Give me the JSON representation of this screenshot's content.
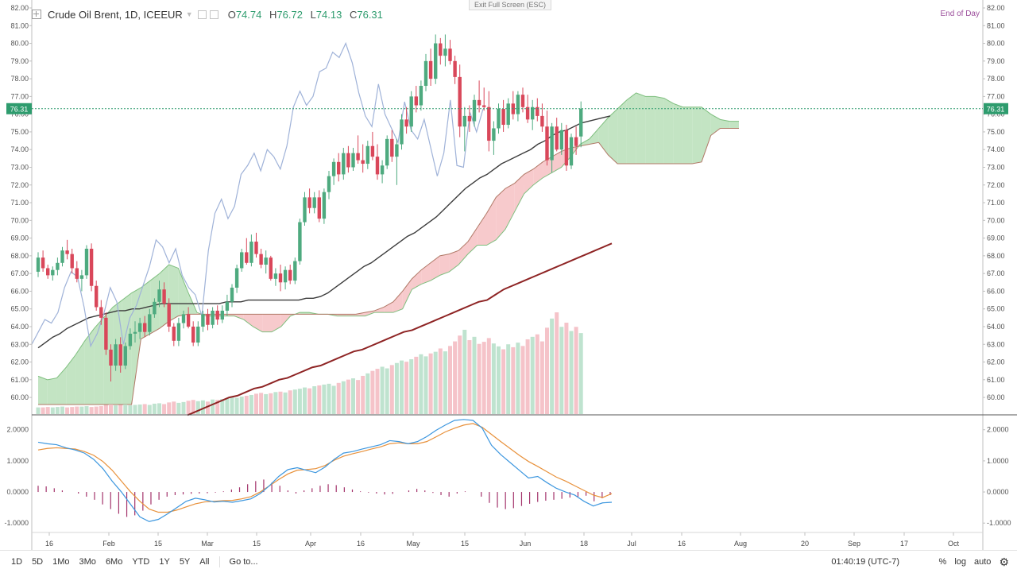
{
  "header": {
    "symbol": "Crude Oil Brent, 1D, ICEEUR",
    "open_label": "O",
    "open": "74.74",
    "high_label": "H",
    "high": "76.72",
    "low_label": "L",
    "low": "74.13",
    "close_label": "C",
    "close": "76.31",
    "exit_fullscreen": "Exit Full Screen (ESC)",
    "end_of_day": "End of Day"
  },
  "colors": {
    "up": "#4eaa7f",
    "down": "#d9475a",
    "cloud_bull": "#b9dfb9",
    "cloud_bear": "#f6c1c3",
    "chikou": "#9fb2d8",
    "ma_dark": "#3c3c3c",
    "ma_red": "#8e2424",
    "macd": "#3d97df",
    "signal": "#e8913b",
    "hist": "#a3336b",
    "price_line": "#2e9c6e"
  },
  "chart_data": {
    "type": "candlestick",
    "x_ticks": [
      "16",
      "Feb",
      "15",
      "Mar",
      "15",
      "Apr",
      "16",
      "May",
      "15",
      "Jun",
      "18",
      "Jul",
      "16",
      "Aug",
      "20",
      "Sep",
      "17",
      "Oct"
    ],
    "y_ticks": [
      "82.00",
      "81.00",
      "80.00",
      "79.00",
      "78.00",
      "77.00",
      "76.00",
      "75.00",
      "74.00",
      "73.00",
      "72.00",
      "71.00",
      "70.00",
      "69.00",
      "68.00",
      "67.00",
      "66.00",
      "65.00",
      "64.00",
      "63.00",
      "62.00",
      "61.00",
      "60.00"
    ],
    "ylim": [
      59.6,
      82.0
    ],
    "current_price": "76.31",
    "ohlc": [
      [
        67.1,
        68.2,
        66.8,
        67.9
      ],
      [
        67.9,
        68.3,
        67.1,
        67.3
      ],
      [
        67.3,
        67.5,
        66.7,
        66.9
      ],
      [
        66.9,
        67.4,
        66.6,
        67.2
      ],
      [
        67.2,
        67.9,
        66.9,
        67.6
      ],
      [
        67.6,
        68.5,
        67.4,
        68.3
      ],
      [
        68.3,
        68.9,
        67.8,
        68.1
      ],
      [
        68.1,
        68.4,
        67.0,
        67.3
      ],
      [
        67.3,
        67.7,
        66.5,
        66.7
      ],
      [
        66.7,
        67.2,
        66.0,
        66.9
      ],
      [
        66.9,
        68.6,
        66.7,
        68.4
      ],
      [
        68.4,
        68.7,
        66.0,
        66.3
      ],
      [
        66.3,
        66.6,
        64.9,
        65.1
      ],
      [
        65.1,
        65.5,
        64.1,
        64.5
      ],
      [
        64.5,
        64.8,
        62.4,
        62.7
      ],
      [
        62.7,
        63.0,
        60.9,
        61.8
      ],
      [
        61.8,
        63.3,
        61.5,
        63.0
      ],
      [
        63.0,
        63.4,
        61.4,
        61.8
      ],
      [
        61.8,
        63.1,
        61.6,
        62.9
      ],
      [
        62.9,
        63.9,
        62.7,
        63.6
      ],
      [
        63.6,
        64.3,
        63.1,
        63.7
      ],
      [
        63.7,
        64.5,
        63.3,
        64.2
      ],
      [
        64.2,
        64.6,
        63.4,
        63.7
      ],
      [
        63.7,
        65.0,
        63.5,
        64.7
      ],
      [
        64.7,
        65.6,
        64.5,
        65.4
      ],
      [
        65.4,
        66.6,
        65.1,
        66.1
      ],
      [
        66.1,
        66.5,
        65.1,
        65.3
      ],
      [
        65.3,
        65.6,
        63.7,
        64.0
      ],
      [
        64.0,
        64.2,
        62.9,
        63.2
      ],
      [
        63.2,
        64.5,
        62.9,
        64.2
      ],
      [
        64.2,
        64.9,
        63.9,
        64.7
      ],
      [
        64.7,
        65.1,
        63.9,
        64.0
      ],
      [
        64.0,
        64.3,
        62.9,
        63.1
      ],
      [
        63.1,
        64.3,
        62.9,
        64.0
      ],
      [
        64.0,
        64.9,
        63.7,
        64.7
      ],
      [
        64.7,
        65.0,
        63.8,
        64.1
      ],
      [
        64.1,
        65.1,
        63.9,
        64.9
      ],
      [
        64.9,
        65.2,
        64.1,
        64.4
      ],
      [
        64.4,
        65.2,
        64.2,
        64.9
      ],
      [
        64.9,
        65.8,
        64.6,
        65.4
      ],
      [
        65.4,
        66.4,
        65.1,
        66.2
      ],
      [
        66.2,
        67.5,
        65.9,
        67.3
      ],
      [
        67.3,
        68.4,
        67.1,
        68.2
      ],
      [
        68.2,
        69.0,
        67.5,
        67.6
      ],
      [
        67.6,
        69.2,
        67.4,
        68.8
      ],
      [
        68.8,
        69.3,
        67.9,
        68.1
      ],
      [
        68.1,
        68.4,
        67.3,
        67.5
      ],
      [
        67.5,
        68.3,
        67.0,
        67.9
      ],
      [
        67.9,
        68.0,
        66.6,
        66.7
      ],
      [
        66.7,
        67.3,
        66.3,
        67.0
      ],
      [
        67.0,
        67.5,
        66.0,
        66.5
      ],
      [
        66.5,
        67.4,
        66.1,
        67.2
      ],
      [
        67.2,
        67.5,
        66.4,
        66.6
      ],
      [
        66.6,
        67.9,
        66.4,
        67.7
      ],
      [
        67.7,
        70.1,
        67.5,
        69.9
      ],
      [
        69.9,
        71.6,
        69.7,
        71.3
      ],
      [
        71.3,
        71.8,
        70.4,
        70.7
      ],
      [
        70.7,
        71.6,
        70.4,
        71.3
      ],
      [
        71.3,
        71.7,
        69.9,
        70.1
      ],
      [
        70.1,
        71.8,
        69.8,
        71.6
      ],
      [
        71.6,
        72.8,
        71.2,
        72.5
      ],
      [
        72.5,
        73.5,
        72.0,
        73.3
      ],
      [
        73.3,
        73.8,
        72.2,
        72.6
      ],
      [
        72.6,
        74.1,
        72.3,
        73.8
      ],
      [
        73.8,
        74.2,
        72.7,
        73.0
      ],
      [
        73.0,
        74.1,
        72.8,
        73.8
      ],
      [
        73.8,
        74.8,
        73.2,
        73.4
      ],
      [
        73.4,
        74.3,
        72.7,
        73.2
      ],
      [
        73.2,
        74.5,
        72.9,
        74.2
      ],
      [
        74.2,
        75.0,
        73.4,
        73.6
      ],
      [
        73.6,
        74.3,
        72.3,
        72.6
      ],
      [
        72.6,
        73.4,
        72.1,
        73.1
      ],
      [
        73.1,
        74.8,
        72.9,
        74.6
      ],
      [
        74.6,
        75.1,
        73.3,
        73.6
      ],
      [
        73.6,
        74.6,
        72.0,
        74.3
      ],
      [
        74.3,
        76.0,
        74.0,
        75.7
      ],
      [
        75.7,
        76.4,
        74.9,
        75.3
      ],
      [
        75.3,
        77.3,
        75.0,
        77.0
      ],
      [
        77.0,
        77.6,
        76.1,
        76.5
      ],
      [
        76.5,
        77.9,
        76.2,
        77.6
      ],
      [
        77.6,
        79.4,
        77.3,
        79.0
      ],
      [
        79.0,
        79.7,
        77.6,
        78.0
      ],
      [
        78.0,
        80.5,
        77.7,
        80.0
      ],
      [
        80.0,
        80.3,
        78.8,
        79.3
      ],
      [
        79.3,
        80.5,
        78.7,
        79.7
      ],
      [
        79.7,
        80.2,
        78.8,
        79.0
      ],
      [
        79.0,
        79.3,
        77.7,
        78.1
      ],
      [
        78.1,
        78.8,
        74.7,
        75.3
      ],
      [
        75.3,
        76.4,
        73.9,
        75.9
      ],
      [
        75.9,
        76.5,
        75.0,
        75.6
      ],
      [
        75.6,
        77.1,
        75.3,
        76.8
      ],
      [
        76.8,
        77.9,
        76.1,
        76.5
      ],
      [
        76.5,
        77.5,
        76.2,
        76.4
      ],
      [
        76.4,
        77.3,
        73.9,
        74.5
      ],
      [
        74.5,
        75.6,
        73.7,
        75.2
      ],
      [
        75.2,
        76.6,
        74.9,
        76.3
      ],
      [
        76.3,
        76.8,
        75.0,
        75.4
      ],
      [
        75.4,
        76.9,
        75.2,
        76.6
      ],
      [
        76.6,
        77.3,
        75.7,
        76.0
      ],
      [
        76.0,
        77.3,
        75.6,
        77.1
      ],
      [
        77.1,
        77.5,
        76.1,
        76.4
      ],
      [
        76.4,
        77.1,
        75.5,
        75.7
      ],
      [
        75.7,
        76.8,
        75.1,
        76.4
      ],
      [
        76.4,
        76.9,
        75.6,
        75.9
      ],
      [
        75.9,
        76.6,
        75.0,
        75.3
      ],
      [
        75.3,
        76.2,
        73.1,
        73.4
      ],
      [
        73.4,
        75.5,
        72.7,
        75.3
      ],
      [
        75.3,
        75.8,
        73.9,
        74.0
      ],
      [
        74.0,
        75.5,
        73.7,
        75.1
      ],
      [
        75.1,
        75.4,
        72.8,
        73.1
      ],
      [
        73.1,
        74.9,
        72.9,
        74.7
      ],
      [
        74.7,
        75.3,
        73.7,
        74.2
      ],
      [
        74.74,
        76.72,
        74.13,
        76.31
      ]
    ],
    "volume": [
      1.6,
      1.6,
      1.7,
      1.6,
      1.7,
      1.8,
      1.6,
      1.7,
      1.8,
      1.8,
      1.9,
      1.7,
      1.8,
      1.9,
      2.2,
      2.3,
      2.1,
      2.2,
      2.3,
      2.1,
      2.2,
      2.3,
      2.4,
      2.2,
      2.5,
      2.6,
      2.4,
      2.8,
      3.0,
      2.7,
      2.9,
      3.2,
      3.4,
      3.1,
      3.3,
      3.0,
      3.5,
      3.4,
      3.6,
      3.8,
      4.0,
      3.9,
      4.2,
      4.4,
      4.6,
      4.9,
      5.1,
      4.8,
      5.0,
      5.3,
      5.4,
      5.2,
      5.7,
      5.9,
      6.1,
      6.4,
      6.2,
      6.7,
      6.9,
      7.1,
      7.3,
      6.8,
      7.5,
      7.9,
      8.3,
      8.6,
      8.2,
      9.2,
      9.8,
      10.4,
      10.9,
      11.4,
      11.0,
      11.8,
      12.3,
      12.9,
      12.6,
      13.2,
      13.8,
      14.4,
      13.9,
      14.6,
      15.0,
      15.8,
      15.1,
      16.4,
      17.5,
      18.9,
      20.3,
      17.8,
      18.6,
      16.9,
      17.4,
      18.3,
      17.0,
      16.3,
      15.6,
      16.8,
      16.1,
      17.2,
      16.4,
      18.0,
      18.6,
      19.2,
      17.5,
      20.8,
      23.0,
      24.5,
      21.0,
      22.0,
      20.0,
      21.0,
      19.5,
      20.5
    ],
    "volume_max": 24.5,
    "ma_dark": [
      62.8,
      63.1,
      63.4,
      63.6,
      63.9,
      64.1,
      64.3,
      64.5,
      64.6,
      64.7,
      64.8,
      64.9,
      64.9,
      65.0,
      65.0,
      65.1,
      65.2,
      65.3,
      65.3,
      65.3,
      65.3,
      65.3,
      65.3,
      65.3,
      65.3,
      65.3,
      65.4,
      65.4,
      65.4,
      65.5,
      65.5,
      65.5,
      65.5,
      65.5,
      65.5,
      65.5,
      65.5,
      65.6,
      65.6,
      65.7,
      65.9,
      66.2,
      66.5,
      66.8,
      67.1,
      67.4,
      67.6,
      67.9,
      68.2,
      68.5,
      68.8,
      69.1,
      69.3,
      69.6,
      69.9,
      70.2,
      70.6,
      71.0,
      71.4,
      71.8,
      72.1,
      72.4,
      72.6,
      72.9,
      73.2,
      73.4,
      73.6,
      73.8,
      74.0,
      74.3,
      74.5,
      74.8,
      75.0,
      75.1,
      75.3,
      75.5,
      75.6,
      75.7,
      75.8,
      75.9
    ],
    "ma_red": [
      59.0,
      59.2,
      59.4,
      59.6,
      59.8,
      60.0,
      60.1,
      60.3,
      60.5,
      60.6,
      60.8,
      61.0,
      61.1,
      61.3,
      61.5,
      61.7,
      61.8,
      62.0,
      62.2,
      62.4,
      62.6,
      62.7,
      62.9,
      63.1,
      63.3,
      63.5,
      63.7,
      63.8,
      64.0,
      64.2,
      64.4,
      64.6,
      64.8,
      65.0,
      65.2,
      65.4,
      65.5,
      65.8,
      66.1,
      66.3,
      66.5,
      66.7,
      66.9,
      67.1,
      67.3,
      67.5,
      67.7,
      67.9,
      68.1,
      68.3,
      68.5,
      68.7
    ],
    "chikou": [
      63.0,
      63.7,
      64.4,
      64.2,
      64.8,
      66.2,
      67.1,
      66.8,
      65.1,
      62.9,
      63.6,
      64.7,
      66.2,
      65.4,
      63.0,
      64.5,
      65.2,
      66.3,
      67.4,
      68.9,
      68.5,
      67.6,
      68.4,
      66.9,
      66.2,
      65.8,
      64.6,
      68.3,
      70.4,
      71.2,
      70.1,
      70.8,
      72.6,
      73.1,
      73.8,
      72.8,
      74.0,
      73.6,
      72.9,
      74.2,
      76.4,
      77.3,
      76.5,
      77.0,
      78.4,
      78.6,
      79.5,
      79.2,
      80.0,
      78.9,
      77.2,
      75.9,
      75.3,
      77.7,
      76.0,
      75.2,
      74.4,
      76.7,
      75.1,
      74.6,
      75.7,
      74.1,
      72.5,
      73.8,
      76.8,
      73.1,
      73.0,
      76.1,
      75.0,
      76.3
    ],
    "cloud_span_a": [
      61.2,
      61.0,
      61.1,
      61.7,
      62.4,
      63.2,
      63.9,
      64.5,
      65.1,
      65.5,
      65.9,
      66.2,
      66.6,
      67.0,
      67.5,
      67.3,
      66.0,
      64.8,
      64.6,
      64.6,
      64.6,
      64.6,
      64.4,
      64.0,
      63.7,
      63.7,
      64.0,
      64.6,
      64.8,
      64.8,
      64.7,
      64.7,
      64.6,
      64.6,
      64.6,
      64.6,
      64.8,
      64.8,
      64.8,
      65.0,
      66.1,
      66.4,
      66.6,
      66.9,
      67.1,
      67.5,
      68.1,
      68.6,
      68.6,
      68.9,
      69.5,
      70.5,
      71.5,
      72.0,
      72.4,
      72.7,
      73.0,
      73.6,
      74.3,
      74.6,
      75.2,
      75.8,
      76.3,
      76.8,
      77.2,
      77.0,
      77.0,
      76.9,
      76.6,
      76.4,
      76.4,
      76.4,
      76.0,
      75.7,
      75.6,
      75.6
    ],
    "cloud_span_b": [
      59.6,
      59.6,
      59.6,
      59.6,
      59.6,
      59.6,
      59.6,
      59.6,
      59.6,
      59.6,
      59.6,
      63.3,
      63.6,
      63.9,
      64.3,
      64.6,
      64.7,
      64.7,
      64.7,
      64.7,
      64.7,
      64.7,
      64.7,
      64.7,
      64.7,
      64.7,
      64.7,
      64.7,
      64.7,
      64.7,
      64.7,
      64.7,
      64.7,
      64.7,
      64.7,
      64.8,
      64.9,
      65.1,
      65.4,
      66.0,
      66.7,
      67.2,
      67.6,
      68.0,
      68.1,
      68.3,
      68.8,
      69.6,
      70.4,
      71.3,
      71.8,
      72.1,
      72.6,
      72.9,
      73.3,
      73.6,
      73.9,
      74.1,
      74.2,
      74.3,
      74.4,
      73.7,
      73.2,
      73.2,
      73.2,
      73.2,
      73.2,
      73.2,
      73.2,
      73.2,
      73.2,
      73.3,
      74.8,
      75.2,
      75.2,
      75.2
    ],
    "macd": {
      "y_ticks": [
        "2.0000",
        "1.0000",
        "0.0000",
        "-1.0000"
      ],
      "ylim": [
        -1.25,
        2.3
      ],
      "macd_line": [
        1.6,
        1.55,
        1.52,
        1.42,
        1.35,
        1.25,
        1.05,
        0.75,
        0.35,
        0.0,
        -0.4,
        -0.8,
        -0.95,
        -0.88,
        -0.7,
        -0.5,
        -0.3,
        -0.2,
        -0.25,
        -0.32,
        -0.3,
        -0.33,
        -0.28,
        -0.22,
        -0.05,
        0.2,
        0.5,
        0.72,
        0.78,
        0.7,
        0.62,
        0.8,
        1.05,
        1.25,
        1.3,
        1.38,
        1.45,
        1.52,
        1.65,
        1.62,
        1.55,
        1.62,
        1.78,
        1.98,
        2.15,
        2.3,
        2.33,
        2.3,
        2.05,
        1.5,
        1.2,
        0.95,
        0.7,
        0.45,
        0.5,
        0.3,
        0.12,
        0.0,
        -0.1,
        -0.3,
        -0.45,
        -0.35,
        -0.33
      ],
      "signal_line": [
        1.35,
        1.4,
        1.42,
        1.4,
        1.38,
        1.3,
        1.18,
        0.98,
        0.7,
        0.35,
        0.0,
        -0.3,
        -0.55,
        -0.65,
        -0.65,
        -0.58,
        -0.48,
        -0.38,
        -0.32,
        -0.3,
        -0.28,
        -0.27,
        -0.22,
        -0.15,
        0.0,
        0.2,
        0.4,
        0.58,
        0.7,
        0.72,
        0.75,
        0.85,
        1.02,
        1.15,
        1.23,
        1.3,
        1.38,
        1.45,
        1.55,
        1.58,
        1.55,
        1.55,
        1.62,
        1.77,
        1.93,
        2.05,
        2.15,
        2.2,
        2.08,
        1.85,
        1.62,
        1.4,
        1.18,
        0.98,
        0.82,
        0.65,
        0.48,
        0.35,
        0.2,
        0.05,
        -0.1,
        -0.18,
        -0.05
      ],
      "histogram": [
        0.2,
        0.18,
        0.12,
        0.05,
        0.0,
        -0.05,
        -0.15,
        -0.25,
        -0.4,
        -0.55,
        -0.7,
        -0.8,
        -0.75,
        -0.6,
        -0.4,
        -0.25,
        -0.15,
        -0.1,
        -0.08,
        -0.06,
        -0.05,
        -0.04,
        -0.02,
        0.02,
        0.08,
        0.15,
        0.25,
        0.35,
        0.4,
        0.3,
        0.2,
        0.05,
        -0.05,
        0.05,
        0.12,
        0.2,
        0.25,
        0.22,
        0.15,
        0.08,
        0.02,
        -0.02,
        -0.05,
        -0.08,
        -0.06,
        0.0,
        0.05,
        0.1,
        0.05,
        -0.03,
        -0.1,
        -0.15,
        -0.05,
        0.02,
        0.0,
        -0.15,
        -0.35,
        -0.5,
        -0.55,
        -0.52,
        -0.45,
        -0.38,
        -0.32,
        -0.28,
        -0.25,
        -0.22,
        -0.18,
        -0.15,
        -0.12,
        -0.3,
        -0.2,
        -0.1
      ]
    }
  },
  "bottom_bar": {
    "ranges": [
      "1D",
      "5D",
      "1Mo",
      "3Mo",
      "6Mo",
      "YTD",
      "1Y",
      "5Y",
      "All"
    ],
    "goto": "Go to...",
    "time": "01:40:19 (UTC-7)",
    "percent": "%",
    "log": "log",
    "auto": "auto"
  }
}
